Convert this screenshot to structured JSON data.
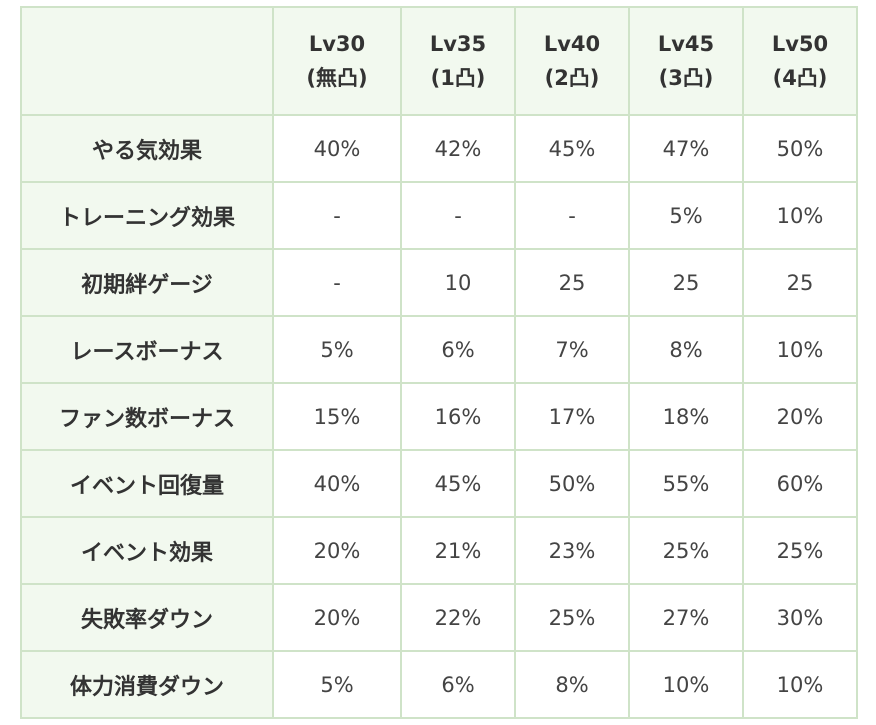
{
  "table": {
    "columns": [
      {
        "level": "Lv30",
        "stage": "(無凸)"
      },
      {
        "level": "Lv35",
        "stage": "(1凸)"
      },
      {
        "level": "Lv40",
        "stage": "(2凸)"
      },
      {
        "level": "Lv45",
        "stage": "(3凸)"
      },
      {
        "level": "Lv50",
        "stage": "(4凸)"
      }
    ],
    "rows": [
      {
        "label": "やる気効果",
        "values": [
          "40%",
          "42%",
          "45%",
          "47%",
          "50%"
        ]
      },
      {
        "label": "トレーニング効果",
        "values": [
          "-",
          "-",
          "-",
          "5%",
          "10%"
        ]
      },
      {
        "label": "初期絆ゲージ",
        "values": [
          "-",
          "10",
          "25",
          "25",
          "25"
        ]
      },
      {
        "label": "レースボーナス",
        "values": [
          "5%",
          "6%",
          "7%",
          "8%",
          "10%"
        ]
      },
      {
        "label": "ファン数ボーナス",
        "values": [
          "15%",
          "16%",
          "17%",
          "18%",
          "20%"
        ]
      },
      {
        "label": "イベント回復量",
        "values": [
          "40%",
          "45%",
          "50%",
          "55%",
          "60%"
        ]
      },
      {
        "label": "イベント効果",
        "values": [
          "20%",
          "21%",
          "23%",
          "25%",
          "25%"
        ]
      },
      {
        "label": "失敗率ダウン",
        "values": [
          "20%",
          "22%",
          "25%",
          "27%",
          "30%"
        ]
      },
      {
        "label": "体力消費ダウン",
        "values": [
          "5%",
          "6%",
          "8%",
          "10%",
          "10%"
        ]
      }
    ]
  },
  "colors": {
    "border": "#cfe3c8",
    "header_bg": "#f2f9ef",
    "cell_bg": "#ffffff",
    "text": "#333333"
  }
}
